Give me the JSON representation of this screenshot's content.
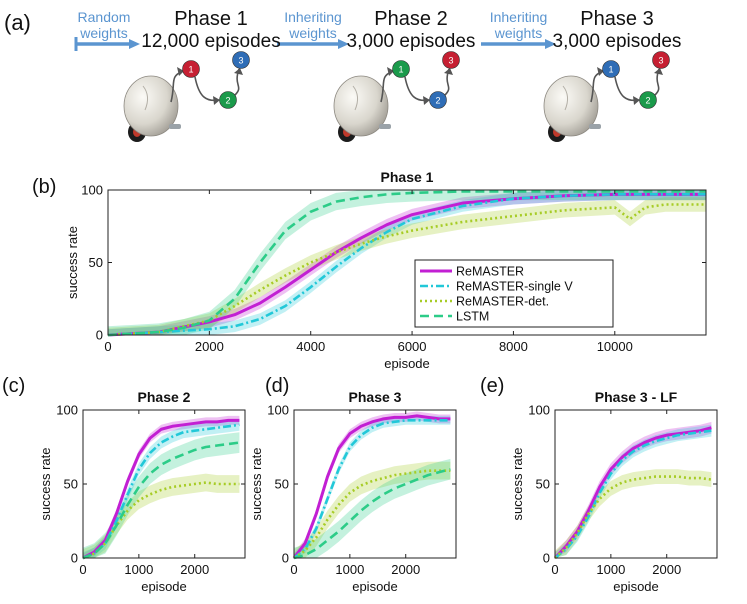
{
  "panel_a": {
    "label": "(a)",
    "arrows": [
      {
        "line1": "Random",
        "line2": "weights"
      },
      {
        "line1": "Inheriting",
        "line2": "weights"
      },
      {
        "line1": "Inheriting",
        "line2": "weights"
      }
    ],
    "phases": [
      {
        "title": "Phase 1",
        "episodes": "12,000 episodes",
        "node_colors": [
          "#c62033",
          "#1b9a4b",
          "#2f6db6"
        ]
      },
      {
        "title": "Phase 2",
        "episodes": "3,000 episodes",
        "node_colors": [
          "#1b9a4b",
          "#2f6db6",
          "#c62033"
        ]
      },
      {
        "title": "Phase 3",
        "episodes": "3,000 episodes",
        "node_colors": [
          "#2f6db6",
          "#1b9a4b",
          "#c62033"
        ]
      }
    ],
    "node_numbers": [
      "1",
      "2",
      "3"
    ]
  },
  "colors": {
    "remaster": "#c21fd3",
    "single_v": "#22c8d8",
    "det": "#a7cc26",
    "lstm": "#2ccc88",
    "arrow": "#5b95d0"
  },
  "chart_data": [
    {
      "id": "b",
      "panel_label": "(b)",
      "type": "line",
      "title": "Phase 1",
      "xlabel": "episode",
      "ylabel": "success rate",
      "xlim": [
        0,
        11800
      ],
      "ylim": [
        0,
        100
      ],
      "xticks": [
        0,
        2000,
        4000,
        6000,
        8000,
        10000
      ],
      "yticks": [
        0,
        50,
        100
      ],
      "legend": {
        "position": "lower-right",
        "labels": [
          "ReMASTER",
          "ReMASTER-single V",
          "ReMASTER-det.",
          "LSTM"
        ]
      },
      "series": [
        {
          "name": "ReMASTER",
          "key": "remaster",
          "x": [
            0,
            1000,
            2000,
            2500,
            3000,
            3500,
            4000,
            4500,
            5000,
            5500,
            6000,
            7000,
            8000,
            9000,
            10000,
            11000,
            11800
          ],
          "y": [
            0,
            2,
            9,
            14,
            22,
            33,
            45,
            57,
            67,
            76,
            83,
            91,
            94,
            96,
            97,
            97,
            97
          ],
          "band": 4
        },
        {
          "name": "ReMASTER-single V",
          "key": "single_v",
          "x": [
            0,
            1000,
            2000,
            2500,
            3000,
            3500,
            4000,
            4500,
            5000,
            5500,
            6000,
            7000,
            8000,
            9000,
            10000,
            11000,
            11800
          ],
          "y": [
            0,
            2,
            4,
            6,
            11,
            20,
            33,
            47,
            60,
            71,
            80,
            89,
            94,
            96,
            97,
            97,
            97
          ],
          "band": 4
        },
        {
          "name": "ReMASTER-det.",
          "key": "det",
          "x": [
            0,
            1000,
            2000,
            2500,
            3000,
            3500,
            4000,
            4500,
            5000,
            5500,
            6000,
            7000,
            8000,
            9000,
            10000,
            10300,
            10600,
            11000,
            11800
          ],
          "y": [
            0,
            2,
            10,
            20,
            31,
            41,
            50,
            57,
            63,
            68,
            72,
            78,
            82,
            86,
            88,
            80,
            88,
            90,
            90
          ],
          "band": 5
        },
        {
          "name": "LSTM",
          "key": "lstm",
          "x": [
            0,
            1000,
            1500,
            2000,
            2500,
            3000,
            3500,
            4000,
            4500,
            5000,
            5500,
            6000,
            7000,
            8000,
            10000,
            11800
          ],
          "y": [
            0,
            2,
            5,
            10,
            25,
            50,
            72,
            85,
            92,
            95,
            97,
            98,
            99,
            99,
            99,
            99
          ],
          "band": 6
        }
      ]
    },
    {
      "id": "c",
      "panel_label": "(c)",
      "type": "line",
      "title": "Phase 2",
      "xlabel": "episode",
      "ylabel": "success rate",
      "xlim": [
        0,
        2900
      ],
      "ylim": [
        0,
        100
      ],
      "xticks": [
        0,
        1000,
        2000
      ],
      "yticks": [
        0,
        50,
        100
      ],
      "series": [
        {
          "name": "ReMASTER",
          "key": "remaster",
          "x": [
            0,
            200,
            400,
            600,
            800,
            1000,
            1200,
            1400,
            1600,
            1800,
            2000,
            2200,
            2400,
            2600,
            2800
          ],
          "y": [
            0,
            4,
            12,
            30,
            52,
            70,
            81,
            87,
            89,
            90,
            91,
            92,
            92,
            93,
            93
          ],
          "band": 3
        },
        {
          "name": "ReMASTER-single V",
          "key": "single_v",
          "x": [
            0,
            200,
            400,
            600,
            800,
            1000,
            1200,
            1400,
            1600,
            1800,
            2000,
            2200,
            2400,
            2600,
            2800
          ],
          "y": [
            0,
            3,
            10,
            25,
            43,
            60,
            71,
            78,
            82,
            85,
            86,
            87,
            88,
            89,
            90
          ],
          "band": 4
        },
        {
          "name": "ReMASTER-det.",
          "key": "det",
          "x": [
            0,
            200,
            400,
            600,
            800,
            1000,
            1200,
            1400,
            1600,
            1800,
            2000,
            2200,
            2400,
            2600,
            2800
          ],
          "y": [
            0,
            3,
            10,
            22,
            32,
            39,
            43,
            46,
            48,
            49,
            50,
            51,
            50,
            50,
            50
          ],
          "band": 6
        },
        {
          "name": "LSTM",
          "key": "lstm",
          "x": [
            0,
            200,
            400,
            600,
            800,
            1000,
            1200,
            1400,
            1600,
            1800,
            2000,
            2200,
            2400,
            2600,
            2800
          ],
          "y": [
            0,
            3,
            10,
            22,
            36,
            48,
            57,
            63,
            67,
            70,
            73,
            75,
            76,
            77,
            78
          ],
          "band": 7
        }
      ]
    },
    {
      "id": "d",
      "panel_label": "(d)",
      "type": "line",
      "title": "Phase 3",
      "xlabel": "episode",
      "ylabel": "success rate",
      "xlim": [
        0,
        2900
      ],
      "ylim": [
        0,
        100
      ],
      "xticks": [
        0,
        1000,
        2000
      ],
      "yticks": [
        0,
        50,
        100
      ],
      "series": [
        {
          "name": "ReMASTER",
          "key": "remaster",
          "x": [
            0,
            200,
            400,
            600,
            800,
            1000,
            1200,
            1400,
            1600,
            1800,
            2000,
            2200,
            2400,
            2600,
            2800
          ],
          "y": [
            0,
            10,
            30,
            55,
            74,
            84,
            89,
            92,
            94,
            95,
            95,
            96,
            95,
            94,
            94
          ],
          "band": 3
        },
        {
          "name": "ReMASTER-single V",
          "key": "single_v",
          "x": [
            0,
            200,
            400,
            600,
            800,
            1000,
            1200,
            1400,
            1600,
            1800,
            2000,
            2200,
            2400,
            2600,
            2800
          ],
          "y": [
            0,
            6,
            20,
            40,
            60,
            75,
            83,
            88,
            91,
            92,
            93,
            93,
            93,
            93,
            93
          ],
          "band": 3
        },
        {
          "name": "ReMASTER-det.",
          "key": "det",
          "x": [
            0,
            200,
            400,
            600,
            800,
            1000,
            1200,
            1400,
            1600,
            1800,
            2000,
            2200,
            2400,
            2600,
            2800
          ],
          "y": [
            0,
            5,
            14,
            26,
            36,
            44,
            49,
            52,
            54,
            56,
            57,
            58,
            59,
            59,
            59
          ],
          "band": 6
        },
        {
          "name": "LSTM",
          "key": "lstm",
          "x": [
            0,
            200,
            400,
            600,
            800,
            1000,
            1200,
            1400,
            1600,
            1800,
            2000,
            2200,
            2400,
            2600,
            2800
          ],
          "y": [
            0,
            2,
            6,
            12,
            18,
            25,
            32,
            38,
            43,
            47,
            50,
            53,
            56,
            58,
            60
          ],
          "band": 7
        }
      ]
    },
    {
      "id": "e",
      "panel_label": "(e)",
      "type": "line",
      "title": "Phase 3 - LF",
      "xlabel": "episode",
      "ylabel": "success rate",
      "xlim": [
        0,
        2900
      ],
      "ylim": [
        0,
        100
      ],
      "xticks": [
        0,
        1000,
        2000
      ],
      "yticks": [
        0,
        50,
        100
      ],
      "series": [
        {
          "name": "ReMASTER",
          "key": "remaster",
          "x": [
            0,
            200,
            400,
            600,
            800,
            1000,
            1200,
            1400,
            1600,
            1800,
            2000,
            2200,
            2400,
            2600,
            2800
          ],
          "y": [
            0,
            8,
            18,
            32,
            48,
            60,
            68,
            74,
            78,
            81,
            83,
            84,
            85,
            86,
            88
          ],
          "band": 4
        },
        {
          "name": "ReMASTER-single V",
          "key": "single_v",
          "x": [
            0,
            200,
            400,
            600,
            800,
            1000,
            1200,
            1400,
            1600,
            1800,
            2000,
            2200,
            2400,
            2600,
            2800
          ],
          "y": [
            0,
            6,
            15,
            28,
            44,
            57,
            66,
            72,
            76,
            79,
            81,
            83,
            84,
            85,
            86
          ],
          "band": 4
        },
        {
          "name": "ReMASTER-det.",
          "key": "det",
          "x": [
            0,
            200,
            400,
            600,
            800,
            1000,
            1200,
            1400,
            1600,
            1800,
            2000,
            2200,
            2400,
            2600,
            2800
          ],
          "y": [
            0,
            7,
            17,
            30,
            40,
            47,
            51,
            53,
            54,
            55,
            55,
            55,
            54,
            54,
            53
          ],
          "band": 5
        }
      ]
    }
  ]
}
